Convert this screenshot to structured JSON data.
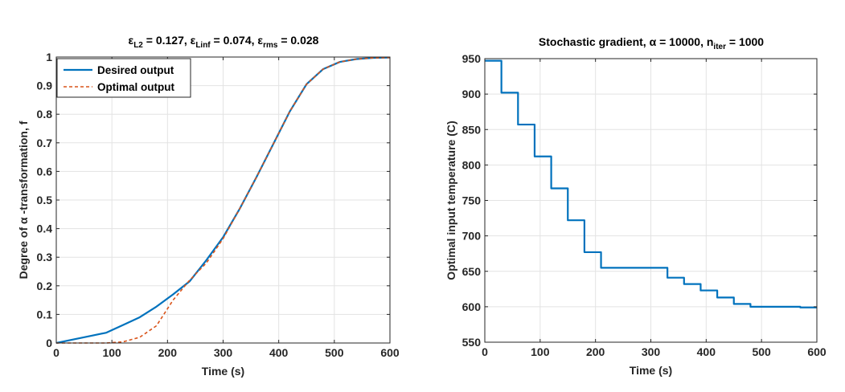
{
  "chart_data": [
    {
      "type": "line",
      "title_parts": [
        "ε",
        "L2",
        " = 0.127, ",
        "ε",
        "Linf",
        " = 0.074, ",
        "ε",
        "rms",
        " = 0.028"
      ],
      "xlabel": "Time (s)",
      "ylabel": "Degree of α -transformation, f",
      "xlim": [
        0,
        600
      ],
      "ylim": [
        0,
        1
      ],
      "xticks": [
        "0",
        "100",
        "200",
        "300",
        "400",
        "500",
        "600"
      ],
      "yticks": [
        "0",
        "0.1",
        "0.2",
        "0.3",
        "0.4",
        "0.5",
        "0.6",
        "0.7",
        "0.8",
        "0.9",
        "1"
      ],
      "grid": true,
      "legend_position": "top-left",
      "series": [
        {
          "name": "Desired output",
          "color": "#0072BD",
          "style": "solid",
          "x": [
            0,
            30,
            60,
            90,
            120,
            150,
            180,
            210,
            240,
            270,
            300,
            330,
            360,
            390,
            420,
            450,
            480,
            510,
            540,
            570,
            600
          ],
          "y": [
            0,
            0.012,
            0.024,
            0.036,
            0.063,
            0.09,
            0.127,
            0.17,
            0.216,
            0.29,
            0.37,
            0.47,
            0.58,
            0.695,
            0.81,
            0.905,
            0.958,
            0.983,
            0.993,
            0.997,
            0.998
          ]
        },
        {
          "name": "Optimal output",
          "color": "#D95319",
          "style": "dashed",
          "x": [
            0,
            30,
            60,
            90,
            120,
            150,
            180,
            210,
            240,
            270,
            300,
            330,
            360,
            390,
            420,
            450,
            480,
            510,
            540,
            570,
            600
          ],
          "y": [
            0,
            0,
            0,
            0,
            0.004,
            0.02,
            0.06,
            0.15,
            0.22,
            0.28,
            0.365,
            0.47,
            0.58,
            0.695,
            0.81,
            0.905,
            0.958,
            0.983,
            0.993,
            0.997,
            0.998
          ]
        }
      ]
    },
    {
      "type": "line",
      "title_parts": [
        "Stochastic gradient, ",
        "α",
        " = 10000, n",
        "iter",
        " = 1000"
      ],
      "xlabel": "Time (s)",
      "ylabel": "Optimal input temperature (C)",
      "xlim": [
        0,
        600
      ],
      "ylim": [
        550,
        950
      ],
      "xticks": [
        "0",
        "100",
        "200",
        "300",
        "400",
        "500",
        "600"
      ],
      "yticks": [
        "550",
        "600",
        "650",
        "700",
        "750",
        "800",
        "850",
        "900",
        "950"
      ],
      "grid": true,
      "series": [
        {
          "color": "#0072BD",
          "style": "step",
          "x": [
            0,
            30,
            60,
            90,
            120,
            150,
            180,
            210,
            240,
            270,
            300,
            330,
            360,
            390,
            420,
            450,
            480,
            510,
            540,
            570,
            600
          ],
          "y": [
            947,
            902,
            857,
            812,
            767,
            722,
            677,
            655,
            655,
            655,
            655,
            641,
            632,
            623,
            613,
            604,
            600,
            600,
            600,
            599,
            599
          ]
        }
      ]
    }
  ]
}
